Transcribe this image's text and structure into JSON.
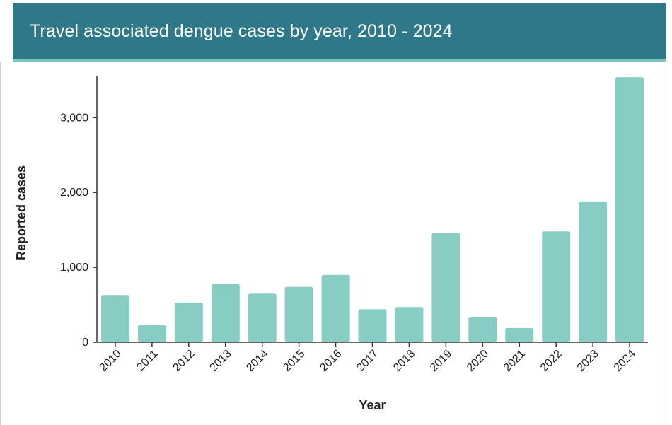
{
  "chart_data": {
    "type": "bar",
    "title": "Travel associated dengue cases by year, 2010 - 2024",
    "xlabel": "Year",
    "ylabel": "Reported cases",
    "categories": [
      "2010",
      "2011",
      "2012",
      "2013",
      "2014",
      "2015",
      "2016",
      "2017",
      "2018",
      "2019",
      "2020",
      "2021",
      "2022",
      "2023",
      "2024"
    ],
    "values": [
      630,
      230,
      530,
      780,
      650,
      740,
      900,
      440,
      470,
      1460,
      340,
      190,
      1480,
      1880,
      3540
    ],
    "ylim": [
      0,
      3550
    ],
    "yticks": [
      0,
      1000,
      2000,
      3000
    ],
    "ytick_labels": [
      "0",
      "1,000",
      "2,000",
      "3,000"
    ],
    "bar_color": "#88cdc4",
    "header_color": "#2f7889",
    "grid": false,
    "legend": "none"
  }
}
